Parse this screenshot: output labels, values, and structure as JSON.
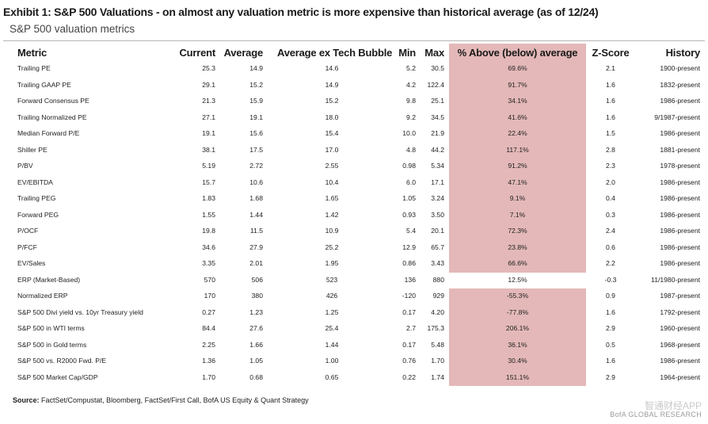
{
  "header": {
    "title": "Exhibit 1: S&P 500 Valuations - on almost any valuation metric is more expensive than historical average (as of 12/24)",
    "subtitle": "S&P 500 valuation metrics"
  },
  "table": {
    "columns": [
      "Metric",
      "Current",
      "Average",
      "Average ex Tech Bubble",
      "Min",
      "Max",
      "% Above (below) average",
      "Z-Score",
      "History"
    ],
    "highlight_color": "#e4b8b8",
    "rows": [
      {
        "metric": "Trailing PE",
        "current": "25.3",
        "average": "14.9",
        "avg_ex_bubble": "14.6",
        "min": "5.2",
        "max": "30.5",
        "pct": "69.6%",
        "z": "2.1",
        "history": "1900-present",
        "highlight": true
      },
      {
        "metric": "Trailing GAAP PE",
        "current": "29.1",
        "average": "15.2",
        "avg_ex_bubble": "14.9",
        "min": "4.2",
        "max": "122.4",
        "pct": "91.7%",
        "z": "1.6",
        "history": "1832-present",
        "highlight": true
      },
      {
        "metric": "Forward Consensus PE",
        "current": "21.3",
        "average": "15.9",
        "avg_ex_bubble": "15.2",
        "min": "9.8",
        "max": "25.1",
        "pct": "34.1%",
        "z": "1.6",
        "history": "1986-present",
        "highlight": true
      },
      {
        "metric": "Trailing Normalized PE",
        "current": "27.1",
        "average": "19.1",
        "avg_ex_bubble": "18.0",
        "min": "9.2",
        "max": "34.5",
        "pct": "41.6%",
        "z": "1.6",
        "history": "9/1987-present",
        "highlight": true
      },
      {
        "metric": "Median Forward P/E",
        "current": "19.1",
        "average": "15.6",
        "avg_ex_bubble": "15.4",
        "min": "10.0",
        "max": "21.9",
        "pct": "22.4%",
        "z": "1.5",
        "history": "1986-present",
        "highlight": true
      },
      {
        "metric": "Shiller PE",
        "current": "38.1",
        "average": "17.5",
        "avg_ex_bubble": "17.0",
        "min": "4.8",
        "max": "44.2",
        "pct": "117.1%",
        "z": "2.8",
        "history": "1881-present",
        "highlight": true
      },
      {
        "metric": "P/BV",
        "current": "5.19",
        "average": "2.72",
        "avg_ex_bubble": "2.55",
        "min": "0.98",
        "max": "5.34",
        "pct": "91.2%",
        "z": "2.3",
        "history": "1978-present",
        "highlight": true
      },
      {
        "metric": "EV/EBITDA",
        "current": "15.7",
        "average": "10.6",
        "avg_ex_bubble": "10.4",
        "min": "6.0",
        "max": "17.1",
        "pct": "47.1%",
        "z": "2.0",
        "history": "1986-present",
        "highlight": true
      },
      {
        "metric": "Trailing PEG",
        "current": "1.83",
        "average": "1.68",
        "avg_ex_bubble": "1.65",
        "min": "1.05",
        "max": "3.24",
        "pct": "9.1%",
        "z": "0.4",
        "history": "1986-present",
        "highlight": true
      },
      {
        "metric": "Forward PEG",
        "current": "1.55",
        "average": "1.44",
        "avg_ex_bubble": "1.42",
        "min": "0.93",
        "max": "3.50",
        "pct": "7.1%",
        "z": "0.3",
        "history": "1986-present",
        "highlight": true
      },
      {
        "metric": "P/OCF",
        "current": "19.8",
        "average": "11.5",
        "avg_ex_bubble": "10.9",
        "min": "5.4",
        "max": "20.1",
        "pct": "72.3%",
        "z": "2.4",
        "history": "1986-present",
        "highlight": true
      },
      {
        "metric": "P/FCF",
        "current": "34.6",
        "average": "27.9",
        "avg_ex_bubble": "25.2",
        "min": "12.9",
        "max": "65.7",
        "pct": "23.8%",
        "z": "0.6",
        "history": "1986-present",
        "highlight": true
      },
      {
        "metric": "EV/Sales",
        "current": "3.35",
        "average": "2.01",
        "avg_ex_bubble": "1.95",
        "min": "0.86",
        "max": "3.43",
        "pct": "66.6%",
        "z": "2.2",
        "history": "1986-present",
        "highlight": true
      },
      {
        "metric": "ERP (Market-Based)",
        "current": "570",
        "average": "506",
        "avg_ex_bubble": "523",
        "min": "136",
        "max": "880",
        "pct": "12.5%",
        "z": "-0.3",
        "history": "11/1980-present",
        "highlight": false
      },
      {
        "metric": "Normalized ERP",
        "current": "170",
        "average": "380",
        "avg_ex_bubble": "426",
        "min": "-120",
        "max": "929",
        "pct": "-55.3%",
        "z": "0.9",
        "history": "1987-present",
        "highlight": true
      },
      {
        "metric": "S&P 500 Divi yield vs. 10yr Treasury yield",
        "current": "0.27",
        "average": "1.23",
        "avg_ex_bubble": "1.25",
        "min": "0.17",
        "max": "4.20",
        "pct": "-77.8%",
        "z": "1.6",
        "history": "1792-present",
        "highlight": true
      },
      {
        "metric": "S&P 500 in WTI terms",
        "current": "84.4",
        "average": "27.6",
        "avg_ex_bubble": "25.4",
        "min": "2.7",
        "max": "175.3",
        "pct": "206.1%",
        "z": "2.9",
        "history": "1960-present",
        "highlight": true
      },
      {
        "metric": "S&P 500 in Gold terms",
        "current": "2.25",
        "average": "1.66",
        "avg_ex_bubble": "1.44",
        "min": "0.17",
        "max": "5.48",
        "pct": "36.1%",
        "z": "0.5",
        "history": "1968-present",
        "highlight": true
      },
      {
        "metric": "S&P 500 vs. R2000 Fwd. P/E",
        "current": "1.36",
        "average": "1.05",
        "avg_ex_bubble": "1.00",
        "min": "0.76",
        "max": "1.70",
        "pct": "30.4%",
        "z": "1.6",
        "history": "1986-present",
        "highlight": true
      },
      {
        "metric": "S&P 500 Market Cap/GDP",
        "current": "1.70",
        "average": "0.68",
        "avg_ex_bubble": "0.65",
        "min": "0.22",
        "max": "1.74",
        "pct": "151.1%",
        "z": "2.9",
        "history": "1964-present",
        "highlight": true
      }
    ]
  },
  "footer": {
    "source_label": "Source:",
    "source_text": "FactSet/Compustat, Bloomberg, FactSet/First Call, BofA US Equity & Quant Strategy",
    "watermark": "智通财经APP",
    "credit": "BofA GLOBAL RESEARCH"
  }
}
